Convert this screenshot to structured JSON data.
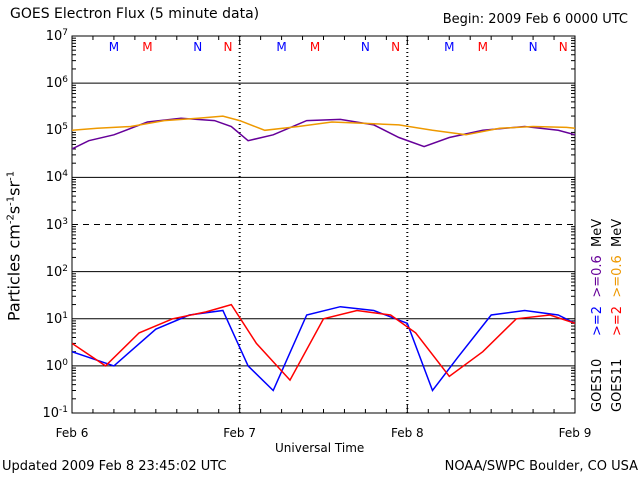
{
  "header": {
    "title": "GOES Electron Flux (5 minute data)",
    "begin": "Begin: 2009 Feb 6 0000 UTC"
  },
  "footer": {
    "updated": "Updated 2009 Feb  8 23:45:02 UTC",
    "credit": "NOAA/SWPC Boulder, CO USA"
  },
  "chart_data": {
    "type": "line",
    "title": "GOES Electron Flux (5 minute data)",
    "xlabel": "Universal Time",
    "ylabel_parts": [
      "Particles cm",
      "-2",
      "s",
      "-1",
      "sr",
      "-1"
    ],
    "yscale": "log",
    "ylim": [
      0.1,
      10000000
    ],
    "y_ticks": [
      {
        "base": "10",
        "exp": "-1"
      },
      {
        "base": "10",
        "exp": "0"
      },
      {
        "base": "10",
        "exp": "1"
      },
      {
        "base": "10",
        "exp": "2"
      },
      {
        "base": "10",
        "exp": "3"
      },
      {
        "base": "10",
        "exp": "4"
      },
      {
        "base": "10",
        "exp": "5"
      },
      {
        "base": "10",
        "exp": "6"
      },
      {
        "base": "10",
        "exp": "7"
      }
    ],
    "x_tick_labels": [
      "Feb 6",
      "Feb 7",
      "Feb 8",
      "Feb 9"
    ],
    "xlim_days": [
      0,
      3
    ],
    "reference_lines": {
      "solid": [
        1,
        10,
        100,
        10000,
        1000000
      ],
      "dashed": [
        1000
      ]
    },
    "markers": {
      "GOES10": {
        "label": "M",
        "color": "#0000ff",
        "x_days": [
          0.25,
          1.25,
          2.25
        ]
      },
      "GOES11": {
        "label": "M",
        "color": "#ff0000",
        "x_days": [
          0.45,
          1.45,
          2.45
        ]
      },
      "GOES10_noon": {
        "label": "N",
        "color": "#0000ff",
        "x_days": [
          0.75,
          1.75,
          2.75
        ]
      },
      "GOES11_noon": {
        "label": "N",
        "color": "#ff0000",
        "x_days": [
          0.93,
          1.93,
          2.93
        ]
      }
    },
    "series": [
      {
        "name": "GOES10 >=2 MeV",
        "color": "#0000ff",
        "x_days": [
          0.0,
          0.25,
          0.5,
          0.7,
          0.9,
          1.05,
          1.2,
          1.4,
          1.6,
          1.8,
          2.0,
          2.15,
          2.3,
          2.5,
          2.7,
          2.9,
          3.0
        ],
        "y": [
          2,
          1,
          6,
          12,
          15,
          1,
          0.3,
          12,
          18,
          15,
          8,
          0.3,
          1.5,
          12,
          15,
          12,
          8
        ]
      },
      {
        "name": "GOES11 >=2 MeV",
        "color": "#ff0000",
        "x_days": [
          0.0,
          0.2,
          0.4,
          0.6,
          0.8,
          0.95,
          1.1,
          1.3,
          1.5,
          1.7,
          1.9,
          2.05,
          2.25,
          2.45,
          2.65,
          2.85,
          3.0
        ],
        "y": [
          3,
          1,
          5,
          10,
          14,
          20,
          3,
          0.5,
          10,
          15,
          12,
          5,
          0.6,
          2,
          10,
          12,
          8
        ]
      },
      {
        "name": "GOES10 >=0.6 MeV",
        "color": "#660099",
        "x_days": [
          0.0,
          0.1,
          0.25,
          0.45,
          0.65,
          0.85,
          0.95,
          1.05,
          1.2,
          1.4,
          1.6,
          1.8,
          1.95,
          2.1,
          2.25,
          2.45,
          2.7,
          2.9,
          3.0
        ],
        "y": [
          40000,
          60000,
          80000,
          150000,
          180000,
          160000,
          120000,
          60000,
          80000,
          160000,
          170000,
          130000,
          70000,
          45000,
          70000,
          100000,
          120000,
          100000,
          80000
        ]
      },
      {
        "name": "GOES11 >=0.6 MeV",
        "color": "#ee9900",
        "x_days": [
          0.0,
          0.15,
          0.35,
          0.55,
          0.75,
          0.9,
          1.0,
          1.15,
          1.35,
          1.55,
          1.75,
          1.95,
          2.15,
          2.35,
          2.55,
          2.75,
          2.95,
          3.0
        ],
        "y": [
          100000,
          110000,
          120000,
          160000,
          180000,
          200000,
          160000,
          100000,
          120000,
          150000,
          140000,
          130000,
          100000,
          80000,
          110000,
          120000,
          115000,
          110000
        ]
      }
    ]
  },
  "right_labels": {
    "goes10": "GOES10",
    "goes10_ch1": ">=2",
    "goes10_ch2": ">=0.6",
    "goes10_unit": "MeV",
    "goes11": "GOES11",
    "goes11_ch1": ">=2",
    "goes11_ch2": ">=0.6",
    "goes11_unit": "MeV"
  }
}
